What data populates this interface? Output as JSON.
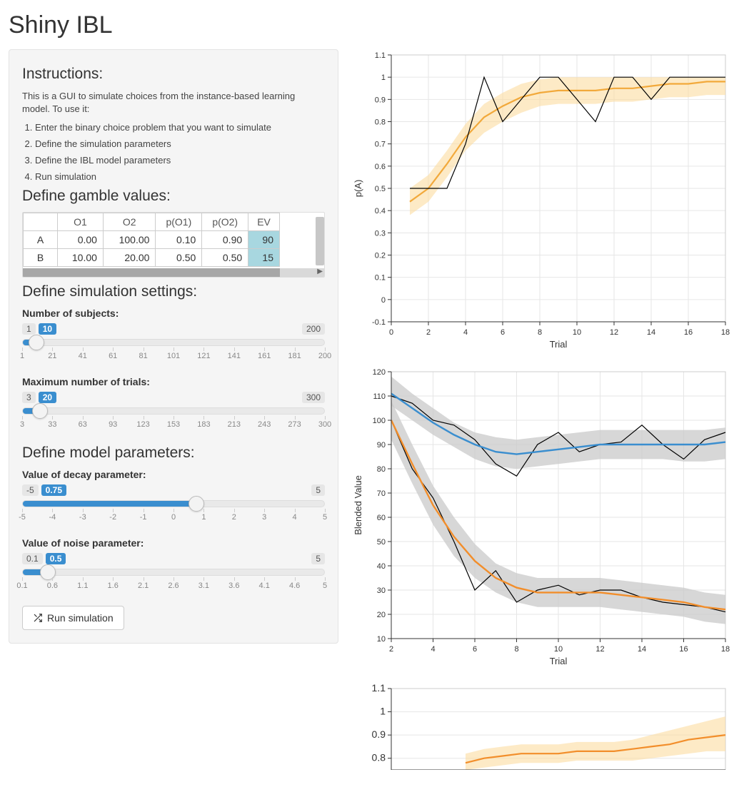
{
  "app": {
    "title": "Shiny IBL"
  },
  "instructions": {
    "heading": "Instructions:",
    "intro": "This is a GUI to simulate choices from the instance-based learning model. To use it:",
    "items": [
      "Enter the binary choice problem that you want to simulate",
      "Define the simulation parameters",
      "Define the IBL model parameters",
      "Run simulation"
    ]
  },
  "gamble": {
    "heading": "Define gamble values:",
    "columns": [
      "",
      "O1",
      "O2",
      "p(O1)",
      "p(O2)",
      "EV"
    ],
    "rows": [
      {
        "label": "A",
        "values": [
          "0.00",
          "100.00",
          "0.10",
          "0.90",
          "90"
        ]
      },
      {
        "label": "B",
        "values": [
          "10.00",
          "20.00",
          "0.50",
          "0.50",
          "15"
        ]
      }
    ],
    "ev_highlight_color": "#a8d7e0"
  },
  "sim_settings": {
    "heading": "Define simulation settings:",
    "sliders": [
      {
        "id": "n_subjects",
        "label": "Number of subjects:",
        "min": 1,
        "max": 200,
        "value": 10,
        "pct": 4.5,
        "ticks": [
          "1",
          "21",
          "41",
          "61",
          "81",
          "101",
          "121",
          "141",
          "161",
          "181",
          "200"
        ]
      },
      {
        "id": "max_trials",
        "label": "Maximum number of trials:",
        "min": 3,
        "max": 300,
        "value": 20,
        "pct": 5.7,
        "ticks": [
          "3",
          "33",
          "63",
          "93",
          "123",
          "153",
          "183",
          "213",
          "243",
          "273",
          "300"
        ]
      }
    ]
  },
  "model_params": {
    "heading": "Define model parameters:",
    "sliders": [
      {
        "id": "decay",
        "label": "Value of decay parameter:",
        "min": -5,
        "max": 5,
        "value": 0.75,
        "pct": 57.5,
        "ticks": [
          "-5",
          "-4",
          "-3",
          "-2",
          "-1",
          "0",
          "1",
          "2",
          "3",
          "4",
          "5"
        ]
      },
      {
        "id": "noise",
        "label": "Value of noise parameter:",
        "min": 0.1,
        "max": 5,
        "value": 0.5,
        "pct": 8.2,
        "ticks": [
          "0.1",
          "0.6",
          "1.1",
          "1.6",
          "2.1",
          "2.6",
          "3.1",
          "3.6",
          "4.1",
          "4.6",
          "5"
        ]
      }
    ]
  },
  "run_button": {
    "label": "Run simulation"
  },
  "chart1": {
    "type": "line",
    "ylabel": "p(A)",
    "xlabel": "Trial",
    "xlim": [
      0,
      18
    ],
    "ylim": [
      -0.1,
      1.1
    ],
    "xticks": [
      0,
      2,
      4,
      6,
      8,
      10,
      12,
      14,
      16,
      18
    ],
    "yticks": [
      -0.1,
      0.0,
      0.1,
      0.2,
      0.3,
      0.4,
      0.5,
      0.6,
      0.7,
      0.8,
      0.9,
      1.0,
      1.1
    ],
    "background_color": "#ffffff",
    "grid_color": "#e6e6e6",
    "panel_border_color": "#cccccc",
    "axis_font_size": 11,
    "raw_line": {
      "color": "#000000",
      "width": 1.2,
      "x": [
        1,
        2,
        3,
        4,
        5,
        6,
        7,
        8,
        9,
        10,
        11,
        12,
        13,
        14,
        15,
        16,
        17,
        18
      ],
      "y": [
        0.5,
        0.5,
        0.5,
        0.7,
        1.0,
        0.8,
        0.9,
        1.0,
        1.0,
        0.9,
        0.8,
        1.0,
        1.0,
        0.9,
        1.0,
        1.0,
        1.0,
        1.0
      ]
    },
    "smooth_line": {
      "color": "#f2a93b",
      "width": 2.2,
      "x": [
        1,
        2,
        3,
        4,
        5,
        6,
        7,
        8,
        9,
        10,
        11,
        12,
        13,
        14,
        15,
        16,
        17,
        18
      ],
      "y": [
        0.44,
        0.5,
        0.61,
        0.73,
        0.82,
        0.87,
        0.91,
        0.93,
        0.94,
        0.94,
        0.94,
        0.95,
        0.95,
        0.96,
        0.97,
        0.97,
        0.98,
        0.98
      ]
    },
    "band": {
      "fill": "#fcdca0",
      "opacity": 0.6,
      "lo": [
        0.38,
        0.44,
        0.55,
        0.67,
        0.75,
        0.8,
        0.84,
        0.87,
        0.88,
        0.88,
        0.88,
        0.89,
        0.89,
        0.9,
        0.91,
        0.91,
        0.92,
        0.92
      ],
      "hi": [
        0.5,
        0.56,
        0.67,
        0.79,
        0.88,
        0.93,
        0.97,
        0.99,
        1.0,
        1.0,
        1.0,
        1.0,
        1.0,
        1.0,
        1.0,
        1.0,
        1.0,
        1.0
      ]
    }
  },
  "chart2": {
    "type": "line",
    "ylabel": "Blended Value",
    "xlabel": "Trial",
    "xlim": [
      2,
      18
    ],
    "ylim": [
      10,
      120
    ],
    "xticks": [
      2,
      4,
      6,
      8,
      10,
      12,
      14,
      16,
      18
    ],
    "yticks": [
      10,
      20,
      30,
      40,
      50,
      60,
      70,
      80,
      90,
      100,
      110,
      120
    ],
    "background_color": "#ffffff",
    "grid_color": "#e6e6e6",
    "panel_border_color": "#cccccc",
    "axis_font_size": 11,
    "series": [
      {
        "name": "A_raw",
        "color": "#000000",
        "width": 1.2,
        "x": [
          2,
          3,
          4,
          5,
          6,
          7,
          8,
          9,
          10,
          11,
          12,
          13,
          14,
          15,
          16,
          17,
          18
        ],
        "y": [
          110,
          107,
          100,
          98,
          92,
          82,
          77,
          90,
          95,
          87,
          90,
          91,
          98,
          90,
          84,
          92,
          95
        ]
      },
      {
        "name": "A_smooth",
        "color": "#3a8ecf",
        "width": 2.4,
        "x": [
          2,
          3,
          4,
          5,
          6,
          7,
          8,
          9,
          10,
          11,
          12,
          13,
          14,
          15,
          16,
          17,
          18
        ],
        "y": [
          111,
          105,
          99,
          94,
          90,
          87,
          86,
          87,
          88,
          89,
          90,
          90,
          90,
          90,
          90,
          90,
          91
        ],
        "band_fill": "#c9c9c9",
        "band_opacity": 0.75,
        "lo": [
          106,
          100,
          94,
          89,
          84,
          81,
          80,
          81,
          82,
          83,
          84,
          84,
          84,
          84,
          83,
          83,
          84
        ],
        "hi": [
          118,
          111,
          105,
          99,
          95,
          93,
          92,
          93,
          94,
          95,
          96,
          96,
          96,
          96,
          96,
          96,
          97
        ]
      },
      {
        "name": "B_raw",
        "color": "#000000",
        "width": 1.2,
        "x": [
          2,
          3,
          4,
          5,
          6,
          7,
          8,
          9,
          10,
          11,
          12,
          13,
          14,
          15,
          16,
          17,
          18
        ],
        "y": [
          100,
          80,
          68,
          50,
          30,
          38,
          25,
          30,
          32,
          28,
          30,
          30,
          27,
          25,
          24,
          23,
          21
        ]
      },
      {
        "name": "B_smooth",
        "color": "#f28e2b",
        "width": 2.4,
        "x": [
          2,
          3,
          4,
          5,
          6,
          7,
          8,
          9,
          10,
          11,
          12,
          13,
          14,
          15,
          16,
          17,
          18
        ],
        "y": [
          100,
          82,
          65,
          52,
          42,
          35,
          31,
          29,
          29,
          29,
          29,
          28,
          27,
          26,
          25,
          23,
          22
        ],
        "band_fill": "#c9c9c9",
        "band_opacity": 0.75,
        "lo": [
          92,
          74,
          57,
          44,
          35,
          29,
          25,
          23,
          23,
          23,
          23,
          22,
          21,
          20,
          19,
          17,
          16
        ],
        "hi": [
          108,
          90,
          73,
          60,
          49,
          41,
          37,
          35,
          35,
          35,
          35,
          34,
          33,
          32,
          31,
          29,
          28
        ]
      }
    ]
  },
  "chart3": {
    "type": "line",
    "ylabel": "",
    "xlabel": "",
    "xlim": [
      0,
      18
    ],
    "ylim": [
      0.75,
      1.1
    ],
    "xticks": [],
    "yticks": [
      0.8,
      0.9,
      1.0,
      1.1
    ],
    "background_color": "#ffffff",
    "grid_color": "#e6e6e6",
    "panel_border_color": "#cccccc",
    "smooth_line": {
      "color": "#f28e2b",
      "width": 2.2,
      "x": [
        4,
        5,
        6,
        7,
        8,
        9,
        10,
        11,
        12,
        13,
        14,
        15,
        16,
        17,
        18
      ],
      "y": [
        0.78,
        0.8,
        0.81,
        0.82,
        0.82,
        0.82,
        0.83,
        0.83,
        0.83,
        0.84,
        0.85,
        0.86,
        0.88,
        0.89,
        0.9
      ]
    },
    "band": {
      "fill": "#fcdca0",
      "opacity": 0.6,
      "x": [
        4,
        5,
        6,
        7,
        8,
        9,
        10,
        11,
        12,
        13,
        14,
        15,
        16,
        17,
        18
      ],
      "lo": [
        0.75,
        0.76,
        0.77,
        0.78,
        0.78,
        0.78,
        0.79,
        0.79,
        0.79,
        0.79,
        0.8,
        0.81,
        0.82,
        0.83,
        0.83
      ],
      "hi": [
        0.82,
        0.84,
        0.85,
        0.86,
        0.86,
        0.86,
        0.87,
        0.87,
        0.87,
        0.88,
        0.9,
        0.92,
        0.94,
        0.96,
        0.98
      ]
    }
  }
}
